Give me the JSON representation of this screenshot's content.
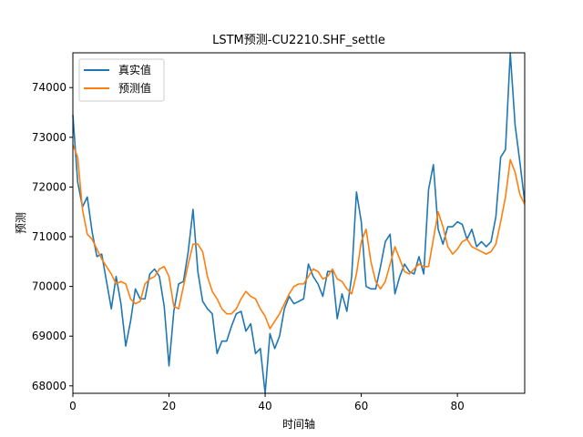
{
  "chart_data": {
    "type": "line",
    "title": "LSTM预测-CU2210.SHF_settle",
    "xlabel": "时间轴",
    "ylabel": "预测",
    "xlim": [
      0,
      94
    ],
    "ylim": [
      67850,
      74700
    ],
    "xticks": [
      0,
      20,
      40,
      60,
      80
    ],
    "yticks": [
      68000,
      69000,
      70000,
      71000,
      72000,
      73000,
      74000
    ],
    "legend_position": "upper-left",
    "series": [
      {
        "name": "真实值",
        "color": "#1f77b4",
        "values": [
          73450,
          72100,
          71600,
          71800,
          71100,
          70600,
          70650,
          70100,
          69550,
          70200,
          69650,
          68800,
          69300,
          69950,
          69750,
          69750,
          70250,
          70350,
          70200,
          69600,
          68400,
          69500,
          70050,
          70100,
          70700,
          71550,
          70300,
          69700,
          69550,
          69450,
          68650,
          68900,
          68900,
          69200,
          69450,
          69500,
          69100,
          69250,
          68650,
          68750,
          67850,
          69050,
          68750,
          69000,
          69550,
          69800,
          69650,
          69700,
          69750,
          70450,
          70200,
          70050,
          69800,
          70300,
          70300,
          69350,
          69850,
          69500,
          70200,
          71900,
          71300,
          70000,
          69950,
          69950,
          70400,
          70900,
          71050,
          69850,
          70200,
          70450,
          70300,
          70250,
          70600,
          70250,
          71950,
          72450,
          71150,
          70850,
          71200,
          71200,
          71300,
          71250,
          70950,
          71150,
          70800,
          70900,
          70800,
          70900,
          71400,
          72600,
          72750,
          74700,
          73250,
          72500,
          71700
        ]
      },
      {
        "name": "预测值",
        "color": "#ff7f0e",
        "values": [
          72850,
          72600,
          71550,
          71050,
          70950,
          70750,
          70550,
          70400,
          70250,
          70050,
          70100,
          70050,
          69750,
          69650,
          69700,
          70050,
          70150,
          70200,
          70350,
          70400,
          70200,
          69600,
          69550,
          70000,
          70450,
          70850,
          70850,
          70700,
          70200,
          69900,
          69750,
          69550,
          69450,
          69450,
          69550,
          69750,
          69900,
          69800,
          69750,
          69550,
          69400,
          69150,
          69300,
          69450,
          69650,
          69850,
          70000,
          70050,
          70050,
          70200,
          70350,
          70300,
          70150,
          70200,
          70350,
          70150,
          70100,
          69950,
          69850,
          70250,
          70900,
          71150,
          70500,
          70100,
          69950,
          70100,
          70450,
          70800,
          70550,
          70300,
          70250,
          70350,
          70450,
          70400,
          70400,
          70950,
          71500,
          71200,
          70800,
          70650,
          70750,
          70900,
          70950,
          70800,
          70750,
          70700,
          70650,
          70700,
          70850,
          71300,
          71800,
          72550,
          72300,
          71850,
          71650
        ]
      }
    ]
  }
}
